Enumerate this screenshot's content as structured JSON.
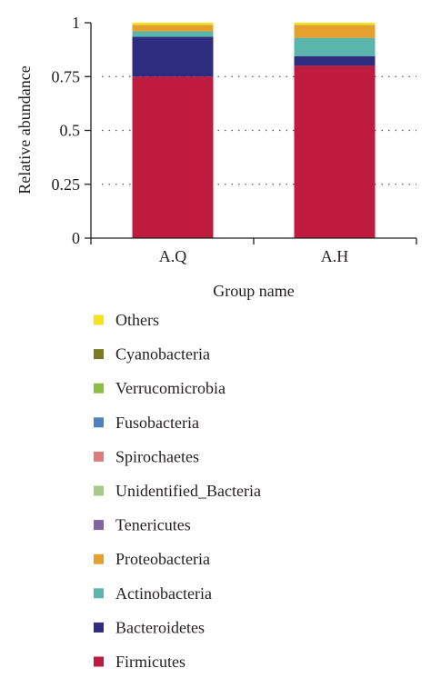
{
  "chart_data": {
    "type": "bar",
    "stacked": true,
    "title": "",
    "xlabel": "Group name",
    "ylabel": "Relative abundance",
    "ylim": [
      0,
      1
    ],
    "yticks": [
      0,
      0.25,
      0.5,
      0.75,
      1
    ],
    "ytick_labels": [
      "0",
      "0.25",
      "0.5",
      "0.75",
      "1"
    ],
    "grid": "dotted horizontal",
    "legend_position": "bottom",
    "categories": [
      "A.Q",
      "A.H"
    ],
    "series": [
      {
        "name": "Firmicutes",
        "color": "#be1b3f",
        "values": [
          0.75,
          0.8
        ]
      },
      {
        "name": "Bacteroidetes",
        "color": "#2e2c7e",
        "values": [
          0.185,
          0.045
        ]
      },
      {
        "name": "Actinobacteria",
        "color": "#5ab5ad",
        "values": [
          0.025,
          0.085
        ]
      },
      {
        "name": "Proteobacteria",
        "color": "#e4a12d",
        "values": [
          0.03,
          0.06
        ]
      },
      {
        "name": "Tenericutes",
        "color": "#8064a2",
        "values": [
          0.0,
          0.0
        ]
      },
      {
        "name": "Unidentified_Bacteria",
        "color": "#a7c98a",
        "values": [
          0.0,
          0.0
        ]
      },
      {
        "name": "Spirochaetes",
        "color": "#e07b7b",
        "values": [
          0.0,
          0.0
        ]
      },
      {
        "name": "Fusobacteria",
        "color": "#4f81bd",
        "values": [
          0.0,
          0.0
        ]
      },
      {
        "name": "Verrucomicrobia",
        "color": "#8cbf3f",
        "values": [
          0.0,
          0.0
        ]
      },
      {
        "name": "Cyanobacteria",
        "color": "#7a7a1e",
        "values": [
          0.0,
          0.0
        ]
      },
      {
        "name": "Others",
        "color": "#f4e21a",
        "values": [
          0.01,
          0.01
        ]
      }
    ],
    "legend_order": [
      "Others",
      "Cyanobacteria",
      "Verrucomicrobia",
      "Fusobacteria",
      "Spirochaetes",
      "Unidentified_Bacteria",
      "Tenericutes",
      "Proteobacteria",
      "Actinobacteria",
      "Bacteroidetes",
      "Firmicutes"
    ]
  }
}
